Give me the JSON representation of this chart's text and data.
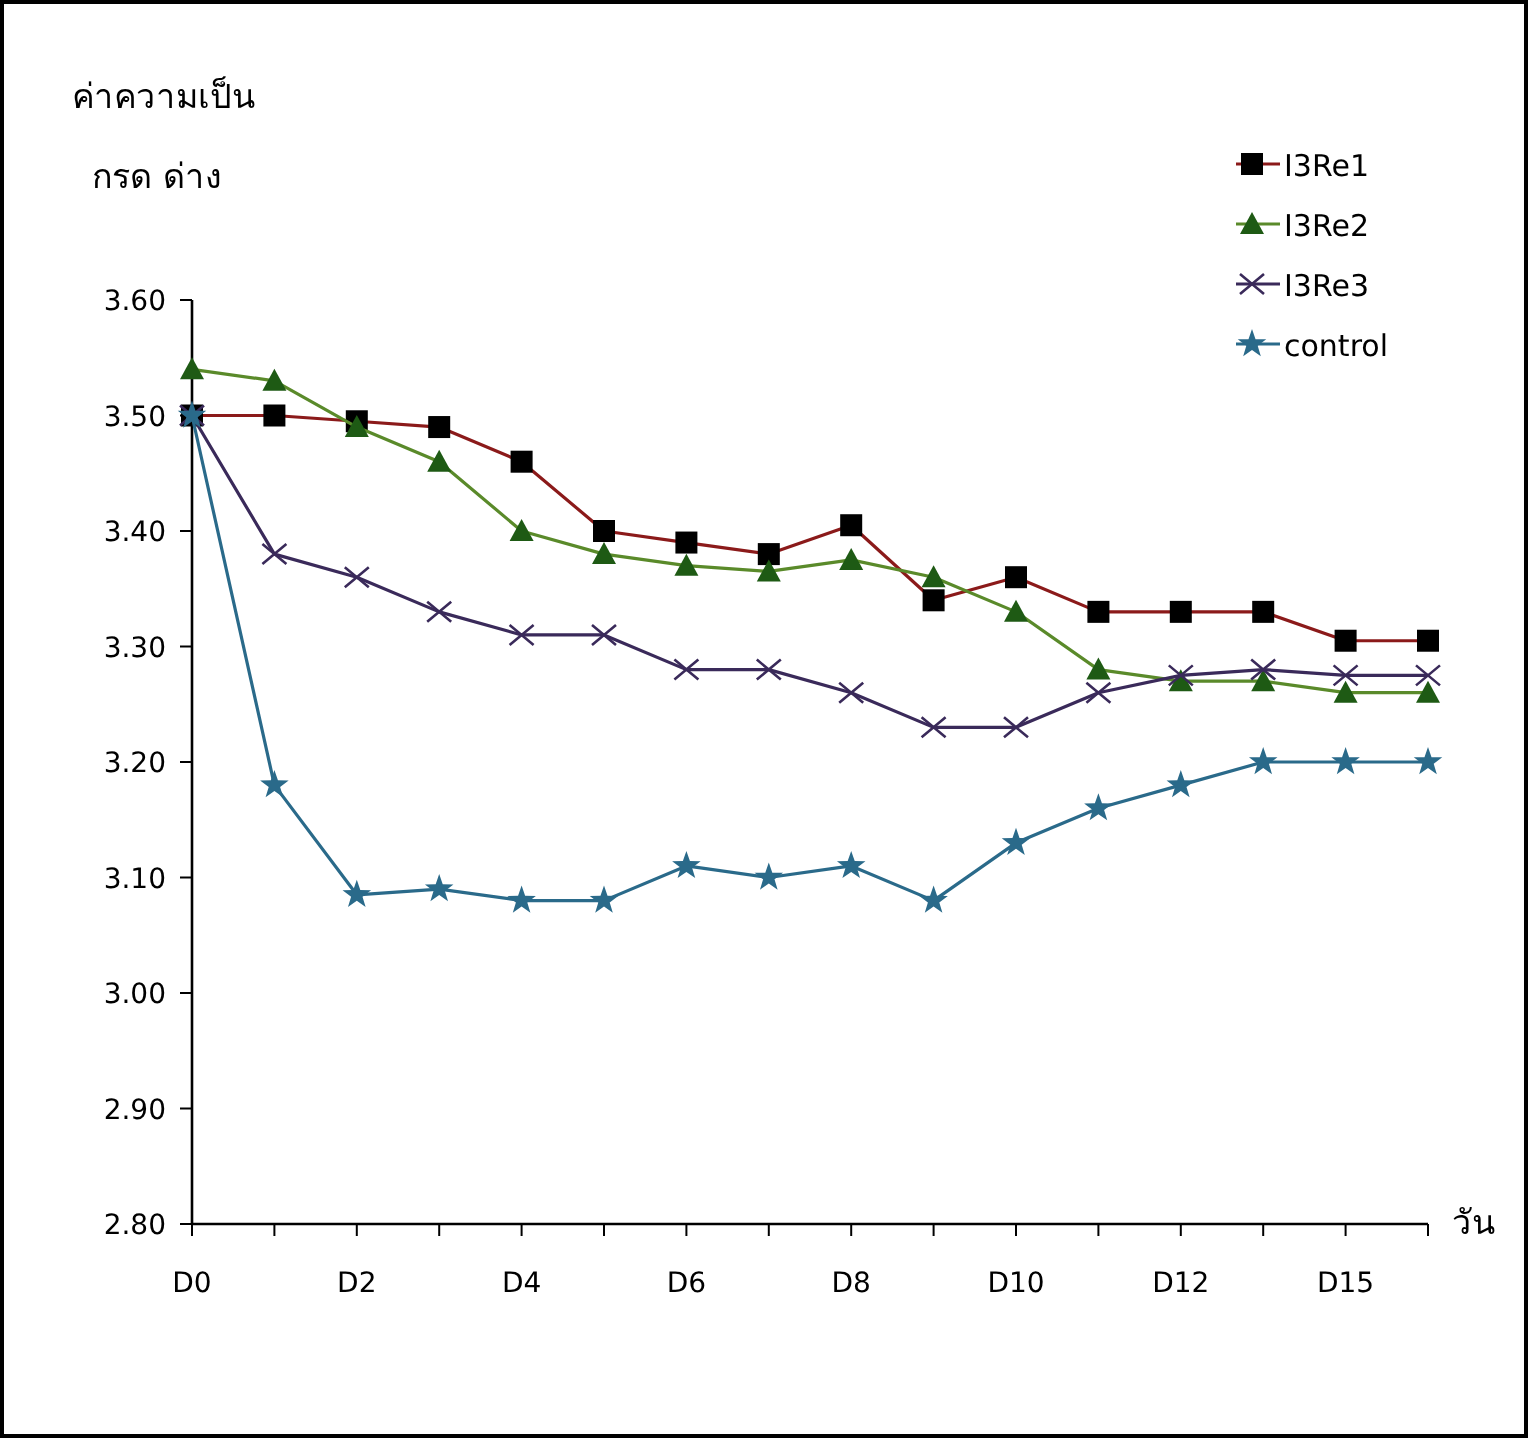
{
  "chart_data": {
    "type": "line",
    "ylabel": "ค่าความเป็น\nกรด ด่าง",
    "xlabel": "วัน",
    "categories": [
      "D0",
      null,
      "D2",
      null,
      "D4",
      null,
      "D6",
      null,
      "D8",
      null,
      "D10",
      null,
      "D12",
      null,
      "D15",
      null
    ],
    "ylim": [
      2.8,
      3.6
    ],
    "yticks": [
      {
        "value": 2.8,
        "label": "2.80"
      },
      {
        "value": 2.9,
        "label": "2.90"
      },
      {
        "value": 3.0,
        "label": "3.00"
      },
      {
        "value": 3.1,
        "label": "3.10"
      },
      {
        "value": 3.2,
        "label": "3.20"
      },
      {
        "value": 3.3,
        "label": "3.30"
      },
      {
        "value": 3.4,
        "label": "3.40"
      },
      {
        "value": 3.5,
        "label": "3.50"
      },
      {
        "value": 3.6,
        "label": "3.60"
      }
    ],
    "grid": false,
    "legend": "top right",
    "series": [
      {
        "name": "I3Re1",
        "color": "#8b1a1a",
        "marker": "square",
        "values": [
          3.5,
          3.5,
          3.495,
          3.49,
          3.46,
          3.4,
          3.39,
          3.38,
          3.405,
          3.34,
          3.36,
          3.33,
          3.33,
          3.33,
          3.305,
          3.305
        ]
      },
      {
        "name": "I3Re2",
        "color": "#5a8a2a",
        "marker": "triangle",
        "values": [
          3.54,
          3.53,
          3.49,
          3.46,
          3.4,
          3.38,
          3.37,
          3.365,
          3.375,
          3.36,
          3.33,
          3.28,
          3.27,
          3.27,
          3.26,
          3.26
        ]
      },
      {
        "name": "I3Re3",
        "color": "#3a2a5a",
        "marker": "cross",
        "values": [
          3.5,
          3.38,
          3.36,
          3.33,
          3.31,
          3.31,
          3.28,
          3.28,
          3.26,
          3.23,
          3.23,
          3.26,
          3.275,
          3.28,
          3.275,
          3.275
        ]
      },
      {
        "name": "control",
        "color": "#2a6a8a",
        "marker": "star",
        "values": [
          3.5,
          3.18,
          3.085,
          3.09,
          3.08,
          3.08,
          3.11,
          3.1,
          3.11,
          3.08,
          3.13,
          3.16,
          3.18,
          3.2,
          3.2,
          3.2
        ]
      }
    ]
  }
}
